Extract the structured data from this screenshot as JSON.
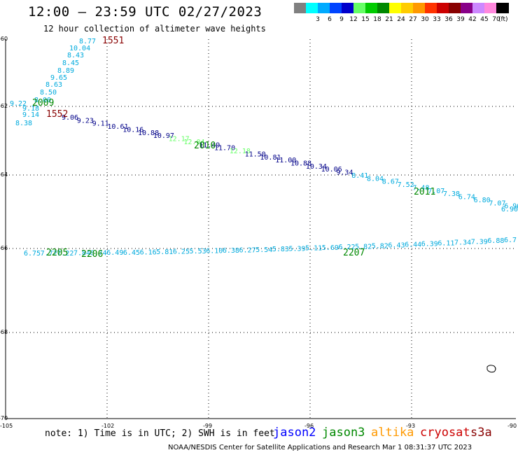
{
  "header": {
    "title": "12:00 – 23:59 UTC 02/27/2023",
    "subtitle": "12 hour collection of altimeter wave heights"
  },
  "legend": {
    "levels": [
      {
        "label": "",
        "color": "#808080"
      },
      {
        "label": "3",
        "color": "#00ffff"
      },
      {
        "label": "6",
        "color": "#00aaff"
      },
      {
        "label": "9",
        "color": "#0044ff"
      },
      {
        "label": "12",
        "color": "#0000cc"
      },
      {
        "label": "15",
        "color": "#66ff66"
      },
      {
        "label": "18",
        "color": "#00cc00"
      },
      {
        "label": "21",
        "color": "#008800"
      },
      {
        "label": "24",
        "color": "#ffff00"
      },
      {
        "label": "27",
        "color": "#ffcc00"
      },
      {
        "label": "30",
        "color": "#ff9900"
      },
      {
        "label": "33",
        "color": "#ff3300"
      },
      {
        "label": "36",
        "color": "#cc0000"
      },
      {
        "label": "39",
        "color": "#880000"
      },
      {
        "label": "42",
        "color": "#880088"
      },
      {
        "label": "45",
        "color": "#cc88ff"
      },
      {
        "label": "70",
        "color": "#ff88dd"
      },
      {
        "label": "",
        "color": "#000000"
      }
    ],
    "unit": "(ft)"
  },
  "map": {
    "lat_labels": [
      "-60",
      "-62",
      "-64",
      "-66",
      "-68",
      "-70"
    ],
    "lon_labels": [
      "-105",
      "-102",
      "-99",
      "-96",
      "-93",
      "-90"
    ]
  },
  "tracks": [
    {
      "name": "upper-left-ascending",
      "color": "#00aadd",
      "points": [
        {
          "text": "8.77"
        },
        {
          "text": "10.04"
        },
        {
          "text": "8.43"
        },
        {
          "text": "8.45"
        },
        {
          "text": "8.89"
        },
        {
          "text": "9.65"
        },
        {
          "text": "8.63"
        },
        {
          "text": "8.50"
        },
        {
          "text": "8.00"
        },
        {
          "text": "9.22"
        },
        {
          "text": "9.18"
        },
        {
          "text": "9.14"
        },
        {
          "text": "8.38"
        }
      ]
    },
    {
      "name": "diagonal-track",
      "points": [
        {
          "text": "9.06",
          "color": "#000088"
        },
        {
          "text": "9.23",
          "color": "#000088"
        },
        {
          "text": "9.11",
          "color": "#000088"
        },
        {
          "text": "10.61",
          "color": "#000088"
        },
        {
          "text": "10.16",
          "color": "#000088"
        },
        {
          "text": "10.88",
          "color": "#000088"
        },
        {
          "text": "10.97",
          "color": "#000088"
        },
        {
          "text": "12.17",
          "color": "#66ff66"
        },
        {
          "text": "12.04",
          "color": "#66ff66"
        },
        {
          "text": "11.49",
          "color": "#000088"
        },
        {
          "text": "11.70",
          "color": "#000088"
        },
        {
          "text": "12.18",
          "color": "#66ff66"
        },
        {
          "text": "11.50",
          "color": "#000088"
        },
        {
          "text": "10.81",
          "color": "#000088"
        },
        {
          "text": "11.00",
          "color": "#000088"
        },
        {
          "text": "10.88",
          "color": "#000088"
        },
        {
          "text": "10.34",
          "color": "#000088"
        },
        {
          "text": "10.06",
          "color": "#000088"
        },
        {
          "text": "9.34",
          "color": "#000088"
        },
        {
          "text": "8.41",
          "color": "#00aadd"
        },
        {
          "text": "8.04",
          "color": "#00aadd"
        },
        {
          "text": "8.67",
          "color": "#00aadd"
        },
        {
          "text": "7.52",
          "color": "#00aadd"
        },
        {
          "text": "7.48",
          "color": "#00aadd"
        },
        {
          "text": "7.07",
          "color": "#00aadd"
        },
        {
          "text": "7.38",
          "color": "#00aadd"
        },
        {
          "text": "6.74",
          "color": "#00aadd"
        },
        {
          "text": "6.80",
          "color": "#00aadd"
        },
        {
          "text": "7.07",
          "color": "#00aadd"
        },
        {
          "text": "6.96",
          "color": "#00aadd"
        },
        {
          "text": "6.90",
          "color": "#00aadd"
        }
      ]
    },
    {
      "name": "lower-track",
      "color": "#00aadd",
      "points": [
        {
          "text": "6.75"
        },
        {
          "text": "7.72"
        },
        {
          "text": "7.22"
        },
        {
          "text": "7.84"
        },
        {
          "text": "6.74"
        },
        {
          "text": "6.49"
        },
        {
          "text": "6.45"
        },
        {
          "text": "6.16"
        },
        {
          "text": "5.81"
        },
        {
          "text": "6.25"
        },
        {
          "text": "5.53"
        },
        {
          "text": "6.10"
        },
        {
          "text": "6.38"
        },
        {
          "text": "6.27"
        },
        {
          "text": "5.54"
        },
        {
          "text": "5.83"
        },
        {
          "text": "5.39"
        },
        {
          "text": "5.11"
        },
        {
          "text": "5.69"
        },
        {
          "text": "6.22"
        },
        {
          "text": "5.82"
        },
        {
          "text": "5.82"
        },
        {
          "text": "6.43"
        },
        {
          "text": "6.44"
        },
        {
          "text": "6.39"
        },
        {
          "text": "6.11"
        },
        {
          "text": "7.34"
        },
        {
          "text": "7.39"
        },
        {
          "text": "6.88"
        },
        {
          "text": "6.7"
        }
      ]
    }
  ],
  "time_labels": [
    {
      "text": "1551",
      "color": "#880000"
    },
    {
      "text": "1552",
      "color": "#880000"
    },
    {
      "text": "2009",
      "color": "#008800"
    },
    {
      "text": "2010",
      "color": "#008800"
    },
    {
      "text": "2011",
      "color": "#008800"
    },
    {
      "text": "2205",
      "color": "#008800"
    },
    {
      "text": "2206",
      "color": "#008800"
    },
    {
      "text": "2207",
      "color": "#008800"
    }
  ],
  "footer": {
    "note": "note:  1) Time is in UTC; 2) SWH is in feet",
    "satellites": [
      {
        "name": "jason2",
        "color": "#0000ff"
      },
      {
        "name": "jason3",
        "color": "#008800"
      },
      {
        "name": "altika",
        "color": "#ff9900"
      },
      {
        "name": "cryosat",
        "color": "#cc0000"
      },
      {
        "name": "s3a",
        "color": "#880000"
      }
    ],
    "credit": "NOAA/NESDIS Center for Satellite Applications and Research    Mar  1 08:31:37 UTC 2023"
  }
}
